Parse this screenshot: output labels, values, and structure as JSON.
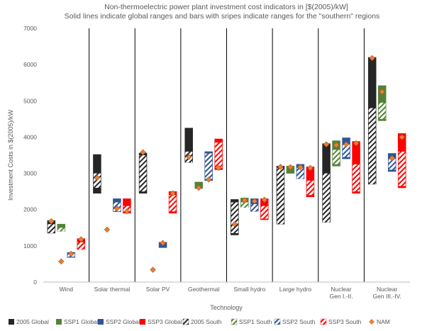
{
  "chart_data": {
    "type": "bar",
    "title": "Non-thermoelectric power plant investment cost indicators in [$(2005)/kW]",
    "subtitle": "Solid lines indicate global ranges and  bars with sripes indicate ranges for the \"southern\" regions",
    "xlabel": "Technology",
    "ylabel": "Investment  Costs in $(2005)/kW",
    "ylim": [
      0,
      7000
    ],
    "yticks": [
      "0",
      "1000",
      "2000",
      "3000",
      "4000",
      "5000",
      "6000",
      "7000"
    ],
    "categories": [
      "Wind",
      "Solar thermal",
      "Solar PV",
      "Geothermal",
      "Small hydro",
      "Large hydro",
      "Nuclear\nGen I.-II.",
      "Nuclear\nGen III.-IV."
    ],
    "grid": false,
    "legend_position": "bottom",
    "series": [
      {
        "name": "2005 Global",
        "color": "#262626",
        "ranges": [
          [
            1350,
            1700
          ],
          [
            2450,
            3520
          ],
          [
            2450,
            3560
          ],
          [
            3300,
            4250
          ],
          [
            1300,
            2280
          ],
          [
            1600,
            3200
          ],
          [
            1650,
            3820
          ],
          [
            2700,
            6200
          ]
        ]
      },
      {
        "name": "SSP1 Global",
        "color": "#548235",
        "ranges": [
          [
            1400,
            1600
          ],
          [
            null,
            null
          ],
          [
            null,
            null
          ],
          [
            2580,
            2760
          ],
          [
            2060,
            2320
          ],
          [
            3000,
            3200
          ],
          [
            3200,
            3900
          ],
          [
            4450,
            5420
          ]
        ]
      },
      {
        "name": "SSP2 Global",
        "color": "#2F5597",
        "ranges": [
          [
            680,
            820
          ],
          [
            1940,
            2300
          ],
          [
            950,
            1100
          ],
          [
            2800,
            3600
          ],
          [
            1950,
            2300
          ],
          [
            2850,
            3250
          ],
          [
            3400,
            3980
          ],
          [
            3050,
            3550
          ]
        ]
      },
      {
        "name": "SSP3 Global",
        "color": "#FF0000",
        "ranges": [
          [
            900,
            1200
          ],
          [
            1900,
            2300
          ],
          [
            1900,
            2500
          ],
          [
            3100,
            3950
          ],
          [
            1720,
            2300
          ],
          [
            2350,
            3180
          ],
          [
            2450,
            3880
          ],
          [
            2600,
            4100
          ]
        ]
      }
    ],
    "south_series": [
      {
        "name": "2005 South",
        "color": "#262626",
        "ranges": [
          [
            1350,
            1600
          ],
          [
            2600,
            3000
          ],
          [
            2500,
            3500
          ],
          [
            3300,
            3600
          ],
          [
            1350,
            2200
          ],
          [
            1600,
            3150
          ],
          [
            1650,
            3000
          ],
          [
            2700,
            4800
          ]
        ]
      },
      {
        "name": "SSP1 South",
        "color": "#548235",
        "ranges": [
          [
            1400,
            1500
          ],
          [
            null,
            null
          ],
          [
            null,
            null
          ],
          [
            null,
            null
          ],
          [
            2050,
            2200
          ],
          [
            null,
            null
          ],
          [
            3250,
            3650
          ],
          [
            4500,
            4950
          ]
        ]
      },
      {
        "name": "SSP2 South",
        "color": "#2F5597",
        "ranges": [
          [
            700,
            800
          ],
          [
            1950,
            2200
          ],
          [
            null,
            null
          ],
          [
            2850,
            3550
          ],
          [
            1950,
            2150
          ],
          [
            2850,
            3150
          ],
          [
            3450,
            3800
          ],
          [
            3100,
            3400
          ]
        ]
      },
      {
        "name": "SSP3 South",
        "color": "#FF0000",
        "ranges": [
          [
            900,
            1100
          ],
          [
            1950,
            2100
          ],
          [
            1950,
            2400
          ],
          [
            3150,
            3850
          ],
          [
            1750,
            2100
          ],
          [
            2400,
            2800
          ],
          [
            2500,
            3250
          ],
          [
            2650,
            3600
          ]
        ]
      }
    ],
    "nam": {
      "name": "NAM",
      "color": "#ED7D31",
      "points": [
        [
          1680,
          570,
          780,
          1180
        ],
        [
          2880,
          1450,
          2030,
          1950
        ],
        [
          3580,
          340,
          1080,
          2450
        ],
        [
          3450,
          2600,
          2830,
          3150
        ],
        [
          1600,
          2260,
          2230,
          2270
        ],
        [
          3180,
          3170,
          3170,
          3150
        ],
        [
          3800,
          3780,
          3800,
          3830
        ],
        [
          6180,
          5250,
          3420,
          4000
        ]
      ]
    }
  }
}
